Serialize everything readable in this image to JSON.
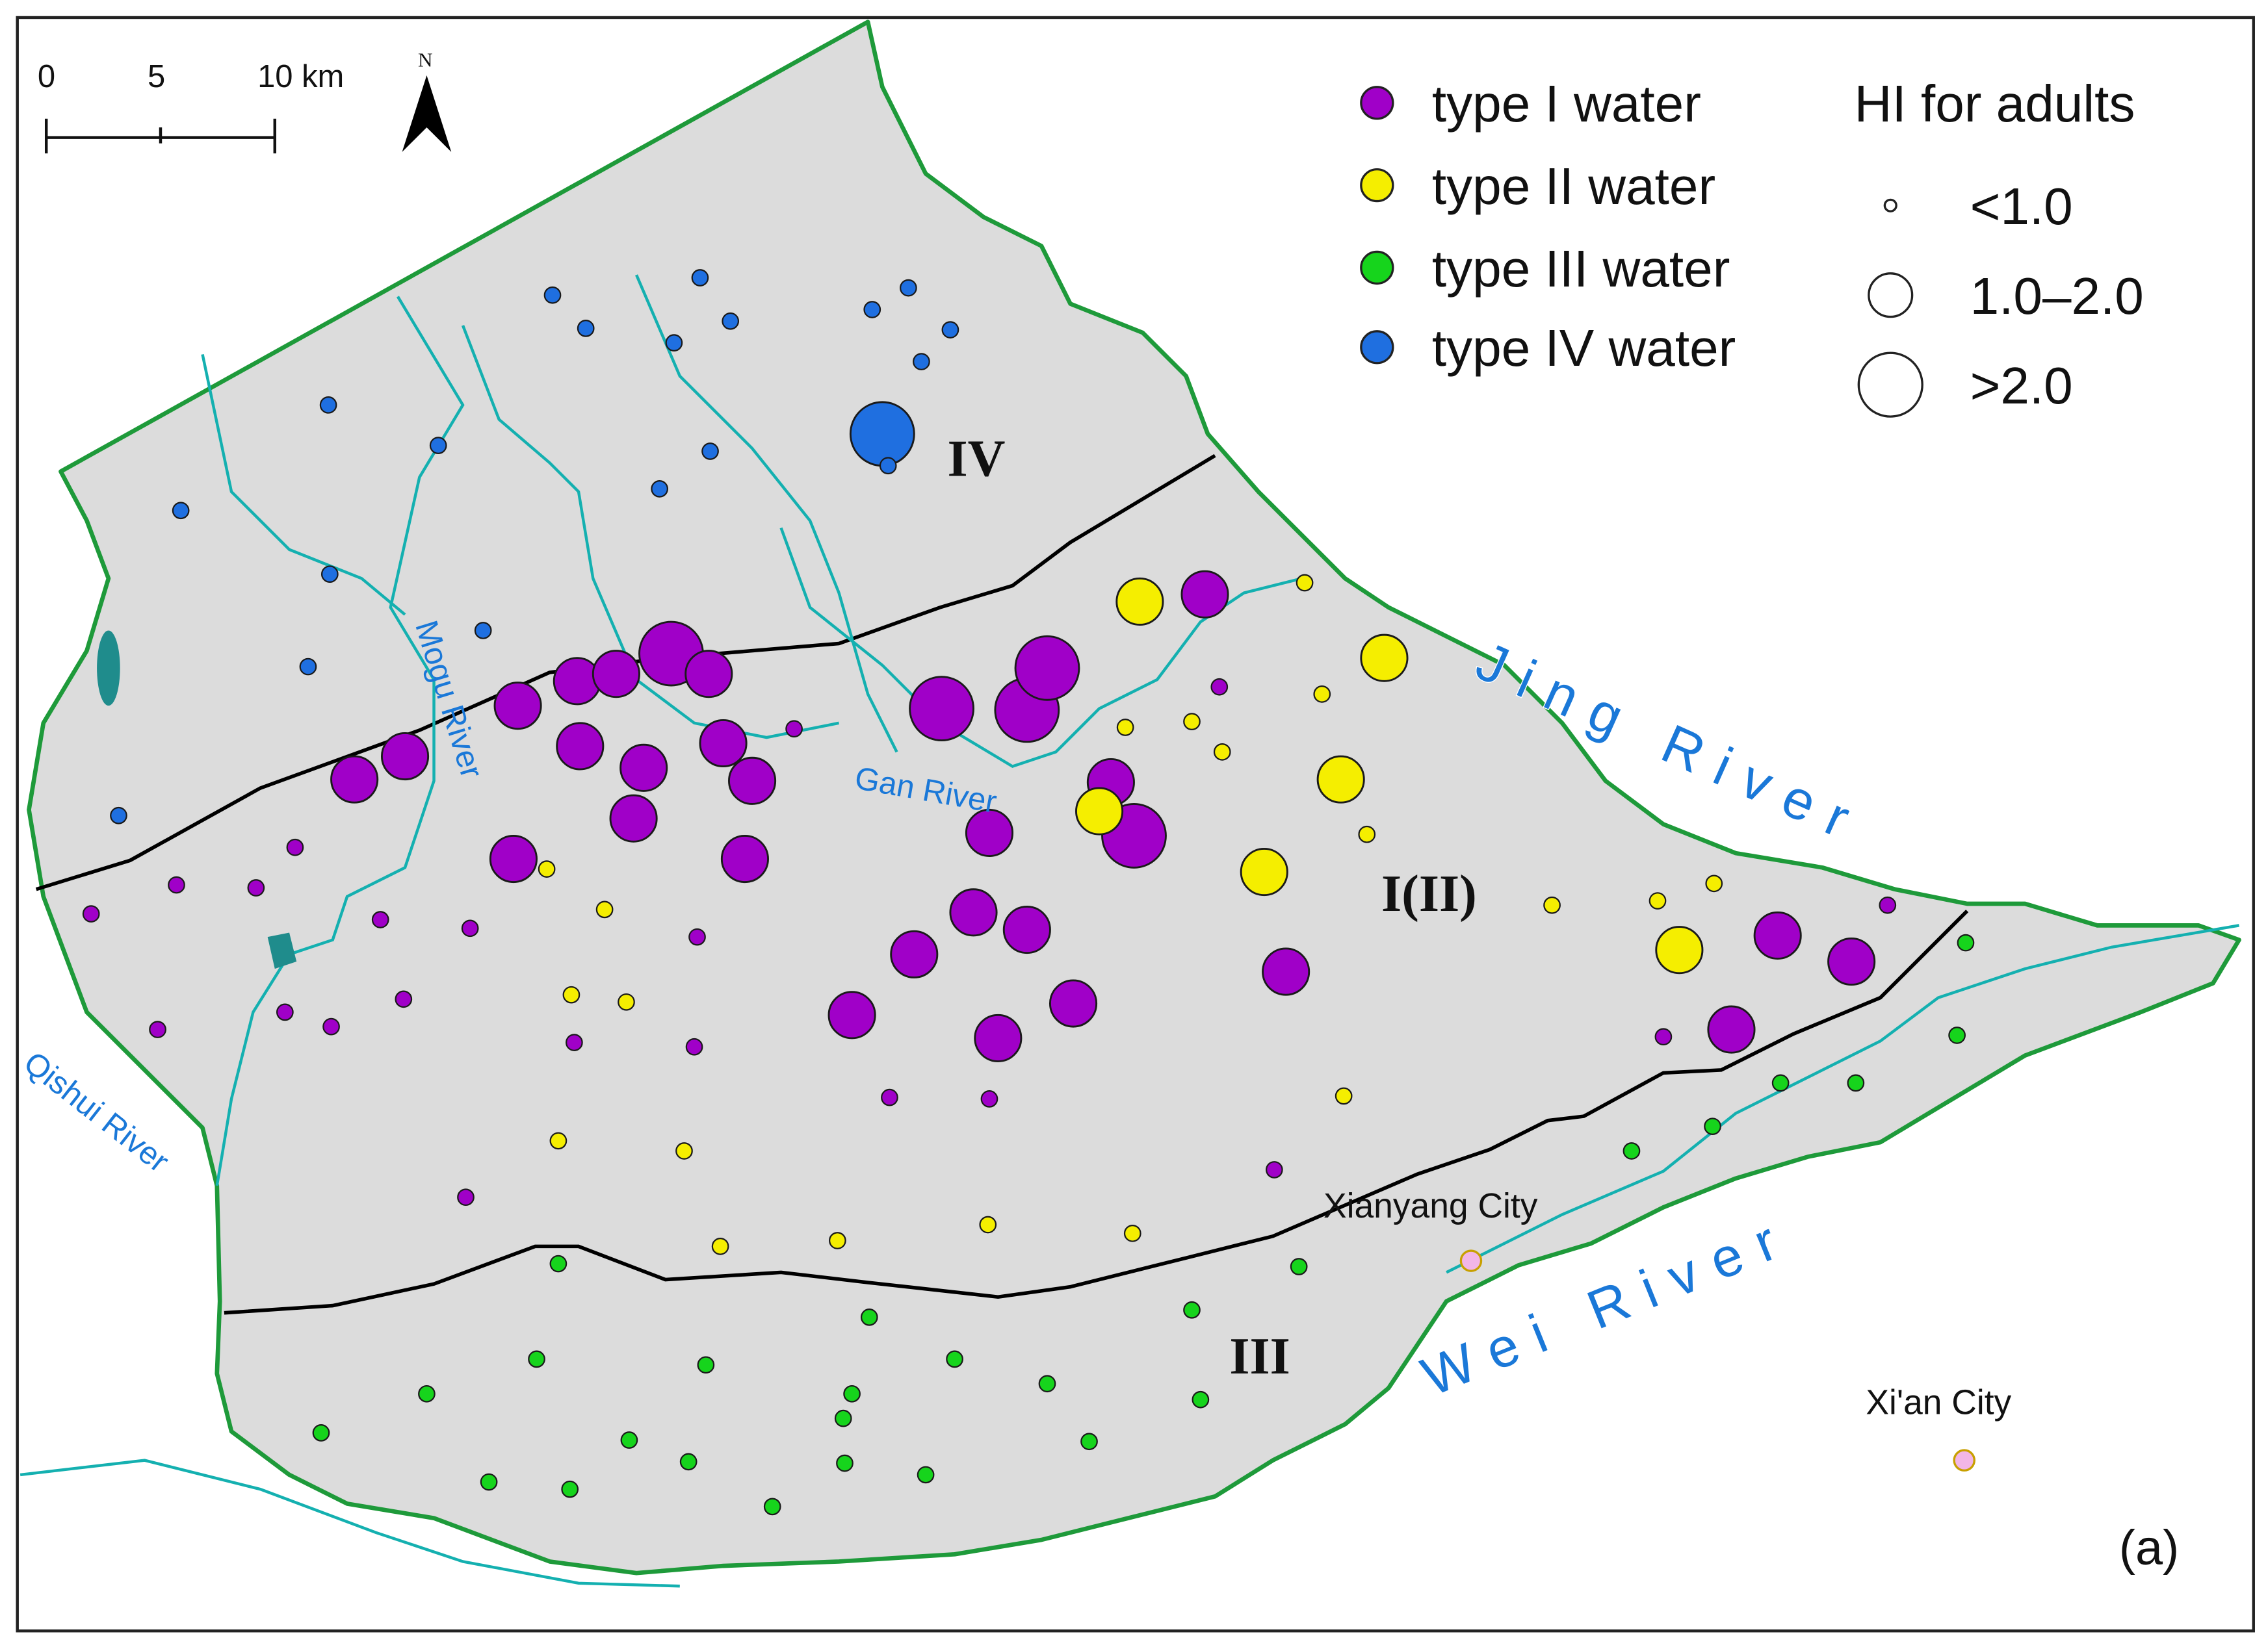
{
  "scale_bar": {
    "ticks": [
      "0",
      "5",
      "10 km"
    ]
  },
  "north_arrow": {
    "label": "N"
  },
  "legend": {
    "water_types": [
      {
        "label": "type I water",
        "color": "#a000c8"
      },
      {
        "label": "type II water",
        "color": "#f5ee00"
      },
      {
        "label": "type III water",
        "color": "#16d41c"
      },
      {
        "label": "type IV water",
        "color": "#1f6fe0"
      }
    ],
    "hi_title": "HI for adults",
    "hi_classes": [
      "<1.0",
      "1.0–2.0",
      ">2.0"
    ]
  },
  "zones": {
    "iv": "IV",
    "i_ii": "I(II)",
    "iii": "III"
  },
  "rivers": {
    "jing": "Jing River",
    "wei": "Wei River",
    "mogu": "Mogu River",
    "gan": "Gan River",
    "qishui": "Qishui River"
  },
  "cities": {
    "xianyang": "Xianyang City",
    "xian": "Xi'an City"
  },
  "panel_label": "(a)",
  "colors": {
    "region_fill": "#dcdcdc",
    "boundary": "#1e9a3a",
    "zone_line": "#000000",
    "river": "#14b0b0",
    "river_label": "#1a78d8",
    "city_marker": "#f2b6e6"
  }
}
